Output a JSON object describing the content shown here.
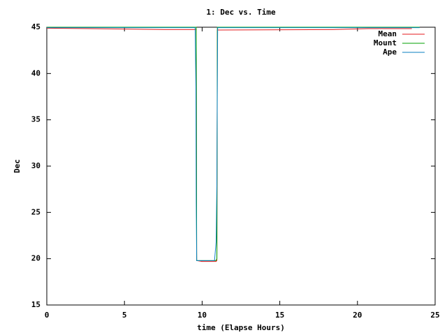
{
  "chart_data": {
    "type": "line",
    "title": "1: Dec vs. Time",
    "x_label": "time (Elapse Hours)",
    "y_label": "Dec",
    "x": [
      0,
      5,
      7.6,
      9.55,
      9.6,
      9.62,
      9.65,
      10.0,
      10.8,
      10.9,
      10.95,
      10.98,
      11.0,
      11.05,
      18.4,
      20.7,
      23.5,
      24
    ],
    "series": [
      {
        "name": "Mean",
        "color": "#e41a1c",
        "values": [
          44.9,
          44.8,
          44.75,
          44.75,
          44.75,
          44.75,
          19.8,
          19.7,
          19.7,
          19.7,
          19.8,
          44.7,
          44.7,
          44.7,
          44.75,
          44.85,
          44.85,
          null
        ]
      },
      {
        "name": "Mount",
        "color": "#00a000",
        "values": [
          45,
          45,
          45,
          45,
          45,
          45,
          19.8,
          19.8,
          19.8,
          19.8,
          20,
          45,
          45,
          45,
          45,
          45,
          45,
          45
        ]
      },
      {
        "name": "Ape",
        "color": "#0a7fc0",
        "values": [
          44.95,
          44.95,
          44.95,
          44.95,
          38.6,
          26.1,
          19.8,
          19.8,
          19.8,
          21.8,
          28.0,
          39.2,
          44.95,
          44.95,
          44.95,
          44.95,
          44.95,
          44.95
        ]
      }
    ],
    "xlim": [
      0,
      25
    ],
    "xticks": [
      0,
      5,
      10,
      15,
      20,
      25
    ],
    "ylim": [
      15,
      45
    ],
    "yticks": [
      15,
      20,
      25,
      30,
      35,
      40,
      45
    ],
    "grid": false,
    "legend": "top-right"
  }
}
